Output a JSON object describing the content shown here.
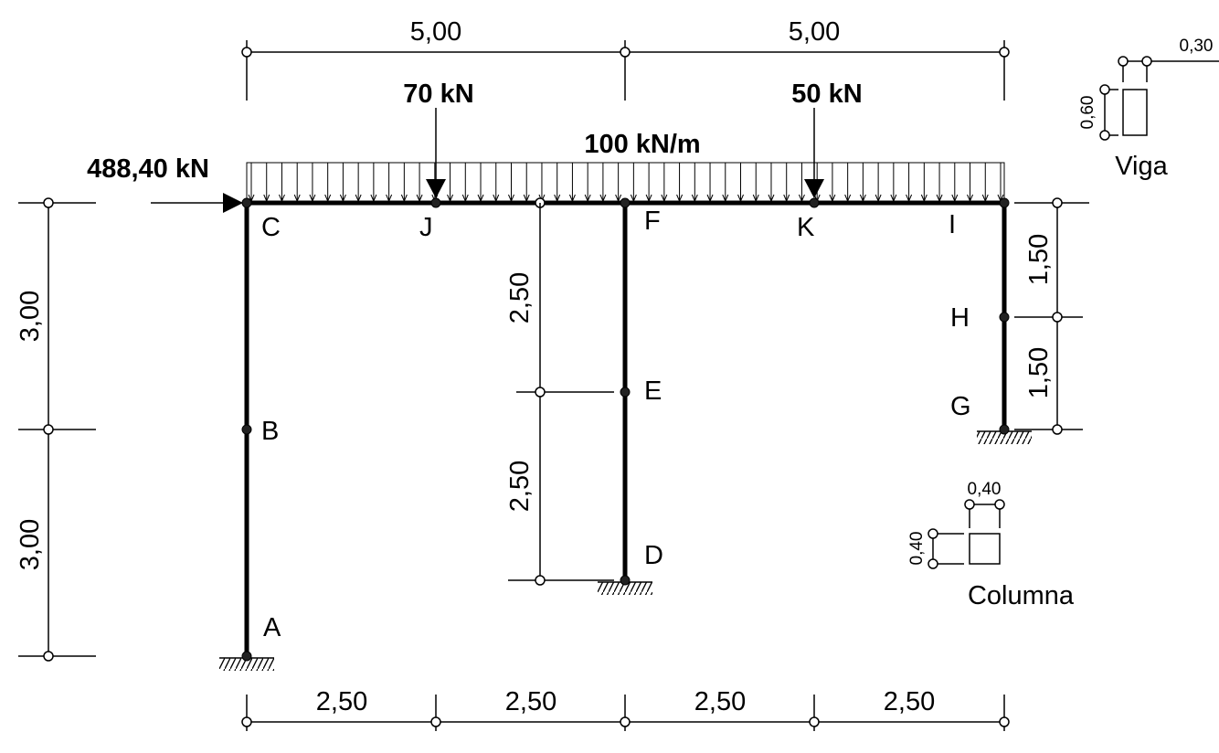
{
  "nodes": {
    "A": "A",
    "B": "B",
    "C": "C",
    "D": "D",
    "E": "E",
    "F": "F",
    "G": "G",
    "H": "H",
    "I": "I",
    "J": "J",
    "K": "K"
  },
  "loads": {
    "horizontal": "488,40 kN",
    "point_left": "70 kN",
    "point_right": "50 kN",
    "distributed": "100 kN/m"
  },
  "dimensions": {
    "top_left": "5,00",
    "top_right": "5,00",
    "bottom": [
      "2,50",
      "2,50",
      "2,50",
      "2,50"
    ],
    "left_upper": "3,00",
    "left_lower": "3,00",
    "middle_upper": "2,50",
    "middle_lower": "2,50",
    "right_upper": "1,50",
    "right_lower": "1,50"
  },
  "sections": {
    "viga_title": "Viga",
    "viga_width": "0,30",
    "viga_height": "0,60",
    "columna_title": "Columna",
    "columna_width": "0,40",
    "columna_height": "0,40"
  }
}
